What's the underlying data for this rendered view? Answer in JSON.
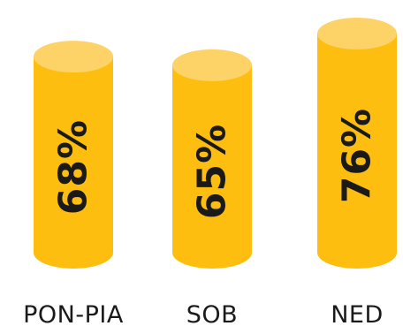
{
  "chart_data": {
    "type": "bar",
    "style": "cylinder",
    "categories": [
      "PON-PIA",
      "SOB",
      "NED"
    ],
    "values": [
      68,
      65,
      76
    ],
    "value_labels": [
      "68%",
      "65%",
      "76%"
    ],
    "value_label_orientation": "vertical",
    "title": "",
    "xlabel": "",
    "ylabel": "",
    "colors": {
      "body": "#FDBE10",
      "top": "#FDD266",
      "label": "#1a1a1a"
    }
  }
}
